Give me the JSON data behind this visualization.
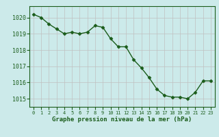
{
  "x": [
    0,
    1,
    2,
    3,
    4,
    5,
    6,
    7,
    8,
    9,
    10,
    11,
    12,
    13,
    14,
    15,
    16,
    17,
    18,
    19,
    20,
    21,
    22,
    23
  ],
  "y": [
    1020.2,
    1020.0,
    1019.6,
    1019.3,
    1019.0,
    1019.1,
    1019.0,
    1019.1,
    1019.5,
    1019.4,
    1018.7,
    1018.2,
    1018.2,
    1017.4,
    1016.9,
    1016.3,
    1015.6,
    1015.2,
    1015.1,
    1015.1,
    1015.0,
    1015.4,
    1016.1,
    1016.1
  ],
  "line_color": "#1a5c1a",
  "marker": "D",
  "markersize": 2.5,
  "linewidth": 1.0,
  "bg_color": "#cceaea",
  "grid_color": "#aaaaaa",
  "xlabel": "Graphe pression niveau de la mer (hPa)",
  "xlabel_color": "#1a5c1a",
  "tick_color": "#1a5c1a",
  "ylim": [
    1014.5,
    1020.7
  ],
  "xlim": [
    -0.5,
    23.5
  ],
  "yticks": [
    1015,
    1016,
    1017,
    1018,
    1019,
    1020
  ],
  "xticks": [
    0,
    1,
    2,
    3,
    4,
    5,
    6,
    7,
    8,
    9,
    10,
    11,
    12,
    13,
    14,
    15,
    16,
    17,
    18,
    19,
    20,
    21,
    22,
    23
  ],
  "grid_line_color": "#c0c0c0"
}
